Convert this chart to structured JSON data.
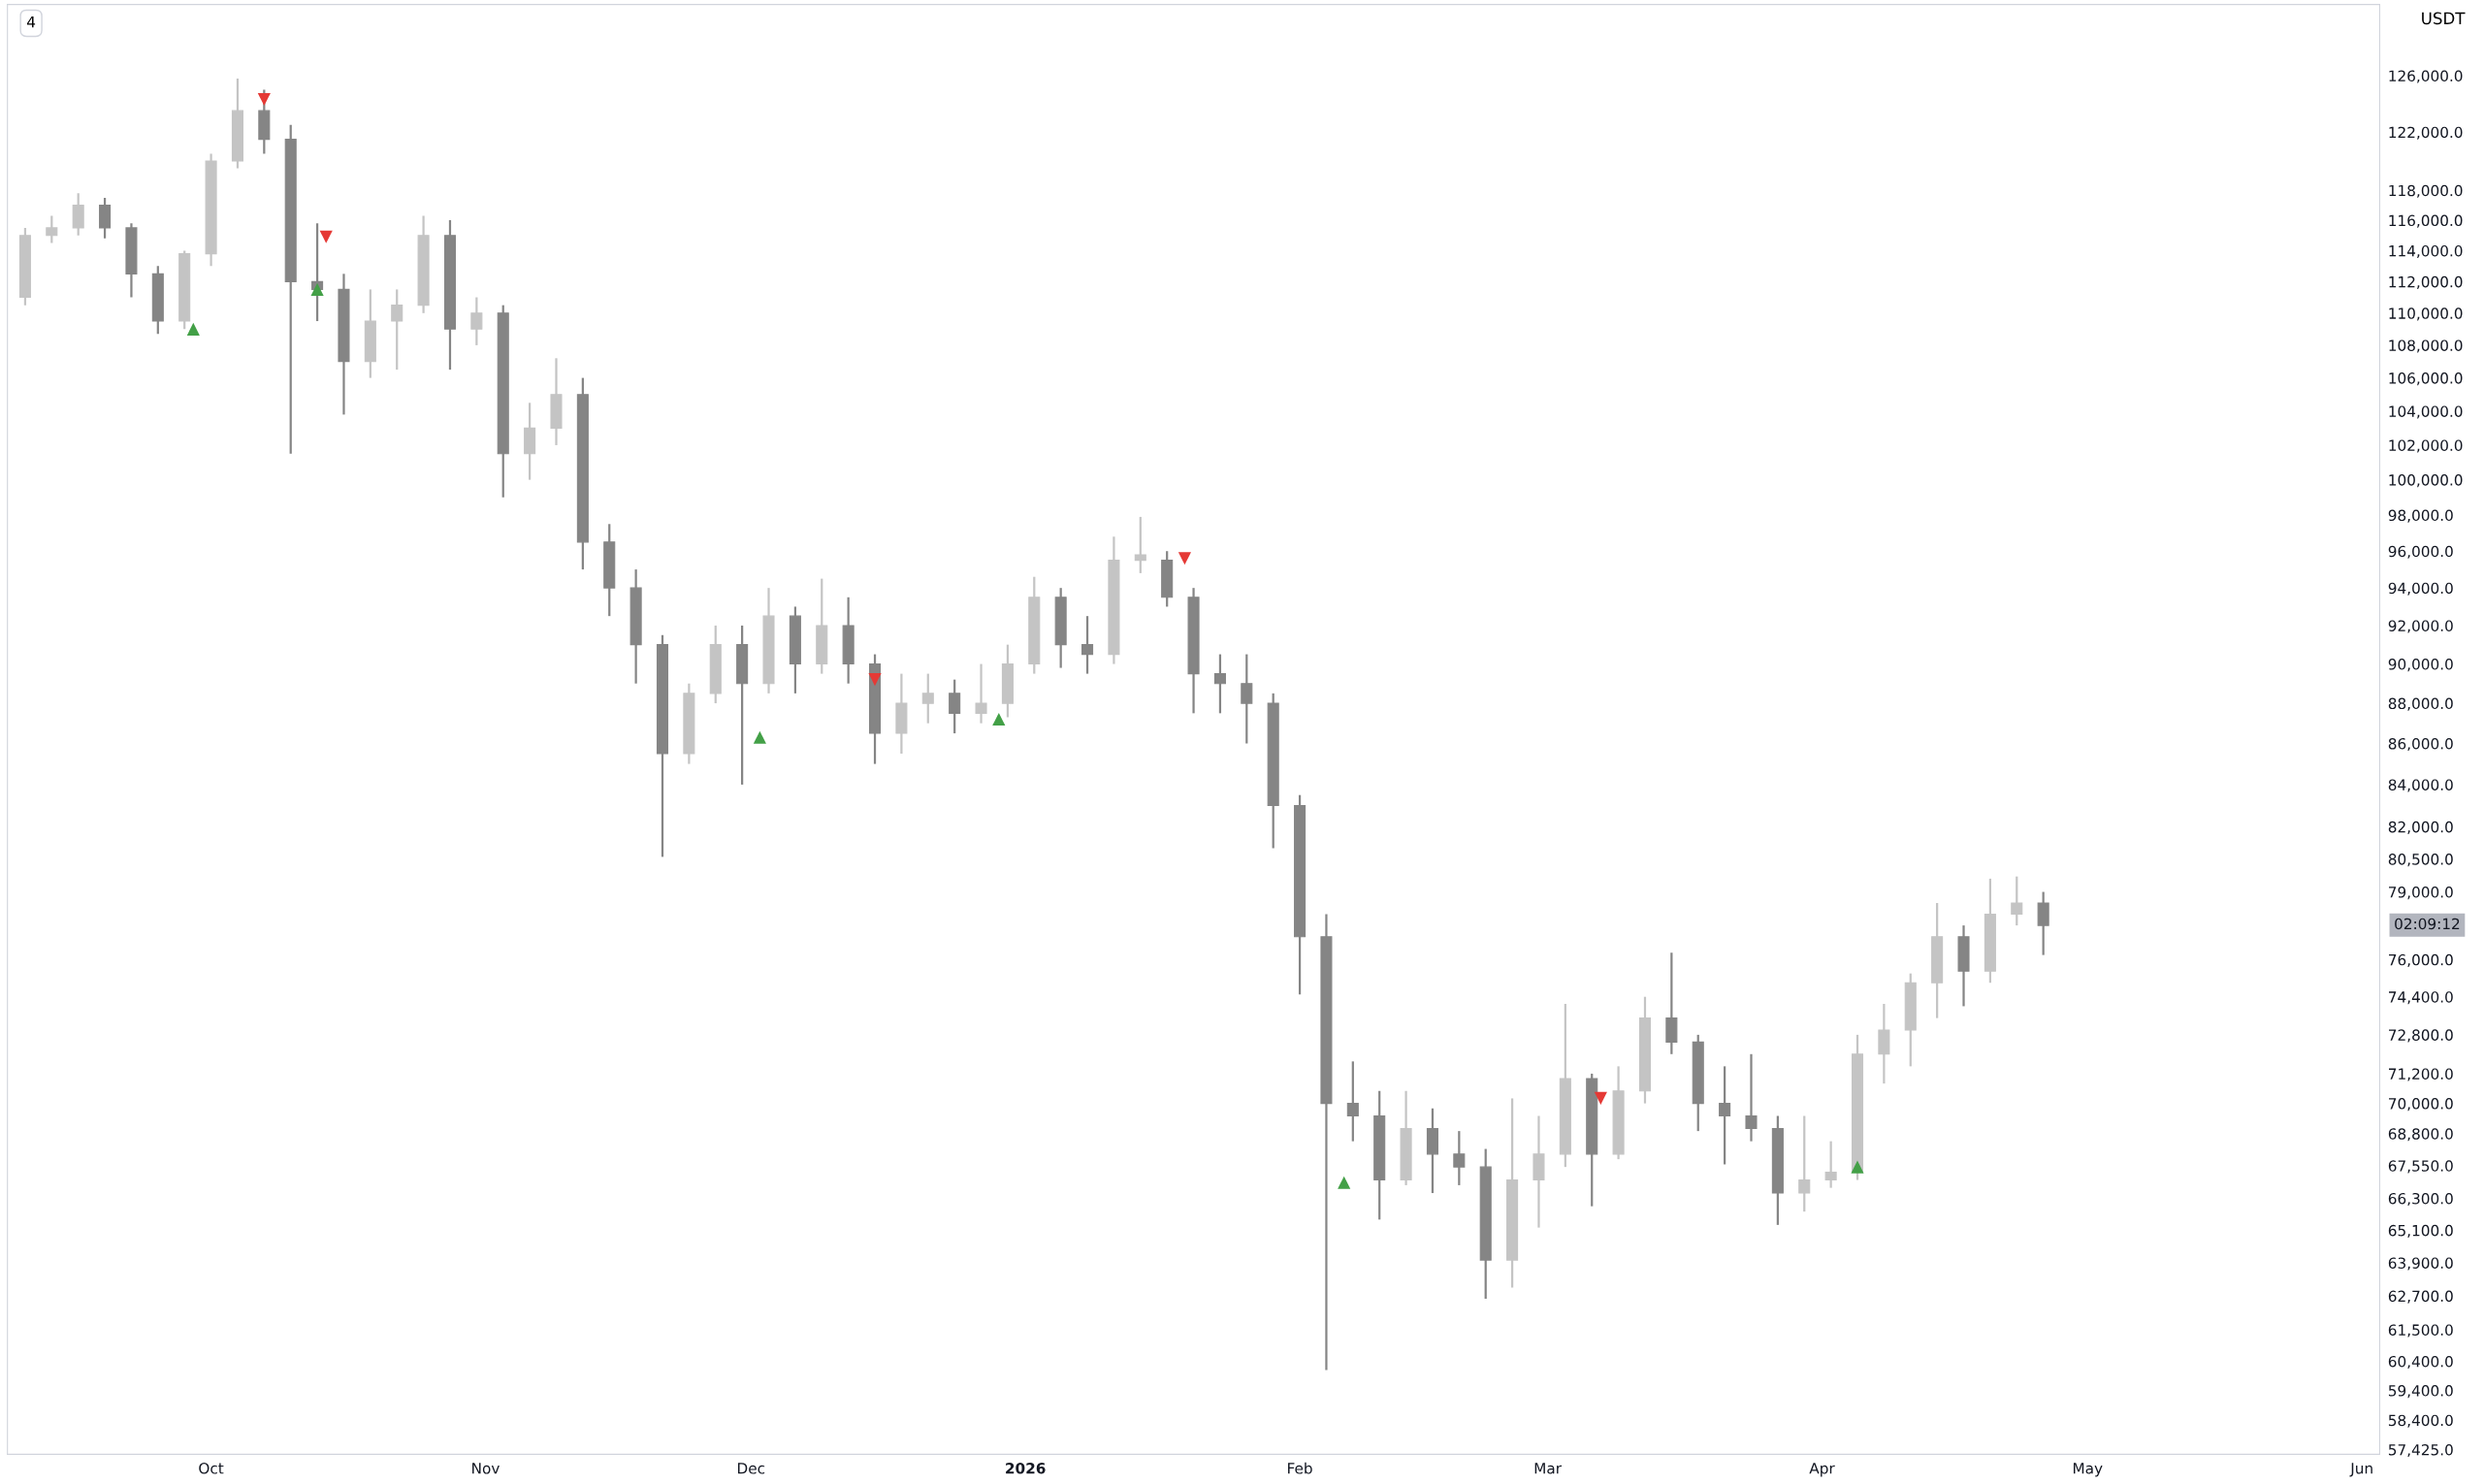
{
  "chart_data": {
    "type": "candlestick",
    "colors": [
      "#c4c4c4",
      "#c4c4c4",
      "#c4c4c4",
      "#858585",
      "#858585",
      "#858585",
      "#c4c4c4",
      "#c4c4c4",
      "#c4c4c4",
      "#858585",
      "#858585",
      "#858585",
      "#858585",
      "#c4c4c4",
      "#c4c4c4",
      "#c4c4c4",
      "#858585",
      "#c4c4c4",
      "#858585",
      "#c4c4c4",
      "#c4c4c4",
      "#858585",
      "#858585",
      "#858585",
      "#858585",
      "#c4c4c4",
      "#c4c4c4",
      "#858585",
      "#c4c4c4",
      "#858585",
      "#c4c4c4",
      "#858585",
      "#858585",
      "#c4c4c4",
      "#c4c4c4",
      "#858585",
      "#c4c4c4",
      "#c4c4c4",
      "#c4c4c4",
      "#858585",
      "#858585",
      "#c4c4c4",
      "#c4c4c4",
      "#858585",
      "#858585",
      "#858585",
      "#858585",
      "#858585",
      "#858585",
      "#858585",
      "#858585",
      "#858585",
      "#c4c4c4",
      "#858585",
      "#858585",
      "#858585",
      "#c4c4c4",
      "#c4c4c4",
      "#c4c4c4",
      "#858585",
      "#c4c4c4",
      "#c4c4c4",
      "#858585",
      "#858585",
      "#858585",
      "#858585",
      "#858585",
      "#c4c4c4",
      "#c4c4c4",
      "#c4c4c4",
      "#c4c4c4",
      "#c4c4c4",
      "#c4c4c4",
      "#858585",
      "#c4c4c4",
      "#c4c4c4",
      "#858585"
    ],
    "log": "y",
    "grid": false,
    "legend": false,
    "x": [
      "2025-09-10",
      "2025-09-13",
      "2025-09-16",
      "2025-09-19",
      "2025-09-22",
      "2025-09-25",
      "2025-09-28",
      "2025-10-01",
      "2025-10-04",
      "2025-10-07",
      "2025-10-10",
      "2025-10-13",
      "2025-10-16",
      "2025-10-19",
      "2025-10-22",
      "2025-10-25",
      "2025-10-28",
      "2025-10-31",
      "2025-11-03",
      "2025-11-06",
      "2025-11-09",
      "2025-11-12",
      "2025-11-15",
      "2025-11-18",
      "2025-11-21",
      "2025-11-24",
      "2025-11-27",
      "2025-11-30",
      "2025-12-03",
      "2025-12-06",
      "2025-12-09",
      "2025-12-12",
      "2025-12-15",
      "2025-12-18",
      "2025-12-21",
      "2025-12-24",
      "2025-12-27",
      "2025-12-30",
      "2026-01-02",
      "2026-01-05",
      "2026-01-08",
      "2026-01-11",
      "2026-01-14",
      "2026-01-17",
      "2026-01-20",
      "2026-01-23",
      "2026-01-26",
      "2026-01-29",
      "2026-02-01",
      "2026-02-04",
      "2026-02-07",
      "2026-02-10",
      "2026-02-13",
      "2026-02-16",
      "2026-02-19",
      "2026-02-22",
      "2026-02-25",
      "2026-02-28",
      "2026-03-03",
      "2026-03-06",
      "2026-03-09",
      "2026-03-12",
      "2026-03-15",
      "2026-03-18",
      "2026-03-21",
      "2026-03-24",
      "2026-03-27",
      "2026-03-30",
      "2026-04-02",
      "2026-04-05",
      "2026-04-08",
      "2026-04-11",
      "2026-04-14",
      "2026-04-17",
      "2026-04-20",
      "2026-04-23",
      "2026-04-26"
    ],
    "ohlc": [
      [
        111000,
        115500,
        110500,
        115000
      ],
      [
        115000,
        116300,
        114500,
        115500
      ],
      [
        115500,
        117800,
        115000,
        117000
      ],
      [
        117000,
        117500,
        114800,
        115500
      ],
      [
        115500,
        115800,
        111000,
        112500
      ],
      [
        112500,
        113000,
        108700,
        109500
      ],
      [
        109500,
        114000,
        109000,
        113800
      ],
      [
        113800,
        120500,
        113000,
        120000
      ],
      [
        120000,
        125800,
        119500,
        123500
      ],
      [
        123500,
        125000,
        120500,
        121500
      ],
      [
        121500,
        122500,
        101500,
        112000
      ],
      [
        112000,
        115800,
        109500,
        111500
      ],
      [
        111500,
        112500,
        103800,
        107000
      ],
      [
        107000,
        111500,
        106000,
        109500
      ],
      [
        109500,
        111500,
        106500,
        110500
      ],
      [
        110500,
        116300,
        110000,
        115000
      ],
      [
        115000,
        116000,
        106500,
        109000
      ],
      [
        109000,
        111000,
        108000,
        110000
      ],
      [
        110000,
        110500,
        99000,
        101500
      ],
      [
        101500,
        104500,
        100000,
        103000
      ],
      [
        103000,
        107200,
        102000,
        105000
      ],
      [
        105000,
        106000,
        95000,
        96500
      ],
      [
        96500,
        97500,
        92500,
        94000
      ],
      [
        94000,
        95000,
        89000,
        91000
      ],
      [
        91000,
        91500,
        80600,
        85500
      ],
      [
        85500,
        89000,
        85000,
        88500
      ],
      [
        88500,
        92000,
        88000,
        91000
      ],
      [
        91000,
        92000,
        84000,
        89000
      ],
      [
        89000,
        94000,
        88500,
        92500
      ],
      [
        92500,
        93000,
        88500,
        90000
      ],
      [
        90000,
        94500,
        89500,
        92000
      ],
      [
        92000,
        93500,
        89000,
        90000
      ],
      [
        90000,
        90500,
        85000,
        86500
      ],
      [
        86500,
        89500,
        85500,
        88000
      ],
      [
        88000,
        89500,
        87000,
        88500
      ],
      [
        88500,
        89200,
        86500,
        87500
      ],
      [
        87500,
        90000,
        87000,
        88000
      ],
      [
        88000,
        91000,
        87300,
        90000
      ],
      [
        90000,
        94600,
        89500,
        93500
      ],
      [
        93500,
        94000,
        89800,
        91000
      ],
      [
        91000,
        92500,
        89500,
        90500
      ],
      [
        90500,
        96800,
        90000,
        95500
      ],
      [
        95500,
        97900,
        94800,
        95800
      ],
      [
        95500,
        96000,
        93000,
        93500
      ],
      [
        93500,
        94000,
        87500,
        89500
      ],
      [
        89500,
        90500,
        87500,
        89000
      ],
      [
        89000,
        90500,
        86000,
        88000
      ],
      [
        88000,
        88500,
        81000,
        83000
      ],
      [
        83000,
        83500,
        74500,
        77000
      ],
      [
        77000,
        78000,
        60100,
        70000
      ],
      [
        70000,
        71700,
        68500,
        69500
      ],
      [
        69500,
        70500,
        65500,
        67000
      ],
      [
        67000,
        70500,
        66800,
        69000
      ],
      [
        69000,
        69800,
        66500,
        68000
      ],
      [
        68000,
        68900,
        66800,
        67500
      ],
      [
        67500,
        68200,
        62600,
        64000
      ],
      [
        64000,
        70200,
        63000,
        67000
      ],
      [
        67000,
        69500,
        65200,
        68000
      ],
      [
        68000,
        74100,
        67500,
        71000
      ],
      [
        71000,
        71200,
        66000,
        68000
      ],
      [
        68000,
        71500,
        67800,
        70500
      ],
      [
        70500,
        74400,
        70000,
        73500
      ],
      [
        73500,
        76300,
        72000,
        72500
      ],
      [
        72500,
        72800,
        68900,
        70000
      ],
      [
        70000,
        71500,
        67600,
        69500
      ],
      [
        69500,
        72000,
        68500,
        69000
      ],
      [
        69000,
        69500,
        65300,
        66500
      ],
      [
        66500,
        69500,
        65800,
        67000
      ],
      [
        67000,
        68500,
        66700,
        67300
      ],
      [
        67300,
        72800,
        67000,
        72000
      ],
      [
        72000,
        74100,
        70800,
        73000
      ],
      [
        73000,
        75400,
        71500,
        75000
      ],
      [
        75000,
        78500,
        73500,
        77000
      ],
      [
        77000,
        77500,
        74000,
        75500
      ],
      [
        75500,
        79600,
        75000,
        78000
      ],
      [
        78000,
        79700,
        77500,
        78500
      ],
      [
        78500,
        79000,
        76200,
        77500
      ]
    ],
    "series": [
      {
        "type": "scatter",
        "marker": "triangle",
        "color": "#43a047",
        "x": [
          "2025-09-29",
          "2025-10-13",
          "2025-12-02",
          "2025-12-29",
          "2026-02-06",
          "2026-04-05"
        ],
        "values": [
          109000,
          111500,
          86300,
          87200,
          66900,
          67500
        ]
      },
      {
        "type": "scatter",
        "marker": "triangle",
        "color": "#e53935",
        "x": [
          "2025-10-07",
          "2025-10-14",
          "2025-12-15",
          "2026-01-19",
          "2026-03-07"
        ],
        "values": [
          124300,
          114900,
          89200,
          95600,
          70200
        ]
      }
    ],
    "xlim": [
      "2025-09-08",
      "2026-06-03"
    ],
    "xticks": [
      {
        "value": "2025-10-01",
        "label": "Oct"
      },
      {
        "value": "2025-11-01",
        "label": "Nov"
      },
      {
        "value": "2025-12-01",
        "label": "Dec"
      },
      {
        "value": "2026-01-01",
        "label": "2026"
      },
      {
        "value": "2026-02-01",
        "label": "Feb"
      },
      {
        "value": "2026-03-01",
        "label": "Mar"
      },
      {
        "value": "2026-04-01",
        "label": "Apr"
      },
      {
        "value": "2026-05-01",
        "label": "May"
      },
      {
        "value": "2026-06-01",
        "label": "Jun"
      }
    ],
    "ylim": [
      57270,
      131240
    ],
    "yticks": [
      {
        "value": 126000,
        "label": "126,000.0"
      },
      {
        "value": 122000,
        "label": "122,000.0"
      },
      {
        "value": 118000,
        "label": "118,000.0"
      },
      {
        "value": 116000,
        "label": "116,000.0"
      },
      {
        "value": 114000,
        "label": "114,000.0"
      },
      {
        "value": 112000,
        "label": "112,000.0"
      },
      {
        "value": 110000,
        "label": "110,000.0"
      },
      {
        "value": 108000,
        "label": "108,000.0"
      },
      {
        "value": 106000,
        "label": "106,000.0"
      },
      {
        "value": 104000,
        "label": "104,000.0"
      },
      {
        "value": 102000,
        "label": "102,000.0"
      },
      {
        "value": 100000,
        "label": "100,000.0"
      },
      {
        "value": 98000,
        "label": "98,000.0"
      },
      {
        "value": 96000,
        "label": "96,000.0"
      },
      {
        "value": 94000,
        "label": "94,000.0"
      },
      {
        "value": 92000,
        "label": "92,000.0"
      },
      {
        "value": 90000,
        "label": "90,000.0"
      },
      {
        "value": 88000,
        "label": "88,000.0"
      },
      {
        "value": 86000,
        "label": "86,000.0"
      },
      {
        "value": 84000,
        "label": "84,000.0"
      },
      {
        "value": 82000,
        "label": "82,000.0"
      },
      {
        "value": 80500,
        "label": "80,500.0"
      },
      {
        "value": 79000,
        "label": "79,000.0"
      },
      {
        "value": 76000,
        "label": "76,000.0"
      },
      {
        "value": 74400,
        "label": "74,400.0"
      },
      {
        "value": 72800,
        "label": "72,800.0"
      },
      {
        "value": 71200,
        "label": "71,200.0"
      },
      {
        "value": 70000,
        "label": "70,000.0"
      },
      {
        "value": 68800,
        "label": "68,800.0"
      },
      {
        "value": 67550,
        "label": "67,550.0"
      },
      {
        "value": 66300,
        "label": "66,300.0"
      },
      {
        "value": 65100,
        "label": "65,100.0"
      },
      {
        "value": 63900,
        "label": "63,900.0"
      },
      {
        "value": 62700,
        "label": "62,700.0"
      },
      {
        "value": 61500,
        "label": "61,500.0"
      },
      {
        "value": 60400,
        "label": "60,400.0"
      },
      {
        "value": 59400,
        "label": "59,400.0"
      },
      {
        "value": 58400,
        "label": "58,400.0"
      },
      {
        "value": 57425,
        "label": "57,425.0"
      }
    ],
    "annotations": [
      "4",
      "USDT",
      "02:09:12"
    ]
  }
}
